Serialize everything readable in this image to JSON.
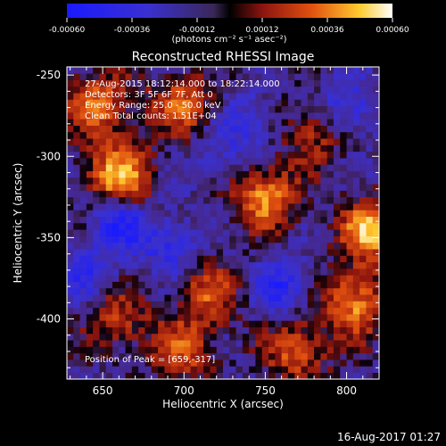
{
  "chart_data": {
    "type": "heatmap",
    "title": "Reconstructed RHESSI Image",
    "xlabel": "Heliocentric X (arcsec)",
    "ylabel": "Heliocentric Y (arcsec)",
    "xlim": [
      628,
      820
    ],
    "ylim": [
      -437,
      -245
    ],
    "x_ticks": [
      650,
      700,
      750,
      800
    ],
    "y_ticks": [
      -250,
      -300,
      -350,
      -400
    ],
    "colorbar": {
      "label": "(photons cm⁻² s⁻¹ asec⁻²)",
      "ticks": [
        "-0.00060",
        "-0.00036",
        "-0.00012",
        "0.00012",
        "0.00036",
        "0.00060"
      ],
      "range": [
        -0.0006,
        0.0006
      ]
    },
    "annotations": [
      "27-Aug-2015 18:12:14.000 to 18:22:14.000",
      "Detectors: 3F 5F 6F 7F, Att 0",
      "Energy Range: 25.0 - 50.0 keV",
      "Clean     Total counts: 1.51E+04"
    ],
    "peak_text": "Position of Peak = [659,-317]",
    "bright_regions": [
      {
        "x": 660,
        "y": -312,
        "v": 0.00058
      },
      {
        "x": 648,
        "y": -268,
        "v": 0.00045
      },
      {
        "x": 700,
        "y": -268,
        "v": 0.0004
      },
      {
        "x": 750,
        "y": -325,
        "v": 0.00052
      },
      {
        "x": 815,
        "y": -345,
        "v": 0.00056
      },
      {
        "x": 805,
        "y": -390,
        "v": 0.0005
      },
      {
        "x": 715,
        "y": -385,
        "v": 0.00035
      },
      {
        "x": 660,
        "y": -400,
        "v": 0.0003
      },
      {
        "x": 770,
        "y": -420,
        "v": 0.0004
      },
      {
        "x": 700,
        "y": -420,
        "v": 0.00035
      },
      {
        "x": 780,
        "y": -285,
        "v": 0.0003
      }
    ],
    "dark_regions": [
      {
        "x": 660,
        "y": -340,
        "v": -0.0004
      },
      {
        "x": 740,
        "y": -280,
        "v": -0.00025
      },
      {
        "x": 760,
        "y": -380,
        "v": -0.00035
      },
      {
        "x": 690,
        "y": -355,
        "v": -0.0003
      },
      {
        "x": 800,
        "y": -270,
        "v": -0.0003
      },
      {
        "x": 640,
        "y": -372,
        "v": -0.00025
      },
      {
        "x": 720,
        "y": -300,
        "v": -0.00015
      }
    ]
  },
  "footer": {
    "timestamp": "16-Aug-2017 01:27"
  }
}
